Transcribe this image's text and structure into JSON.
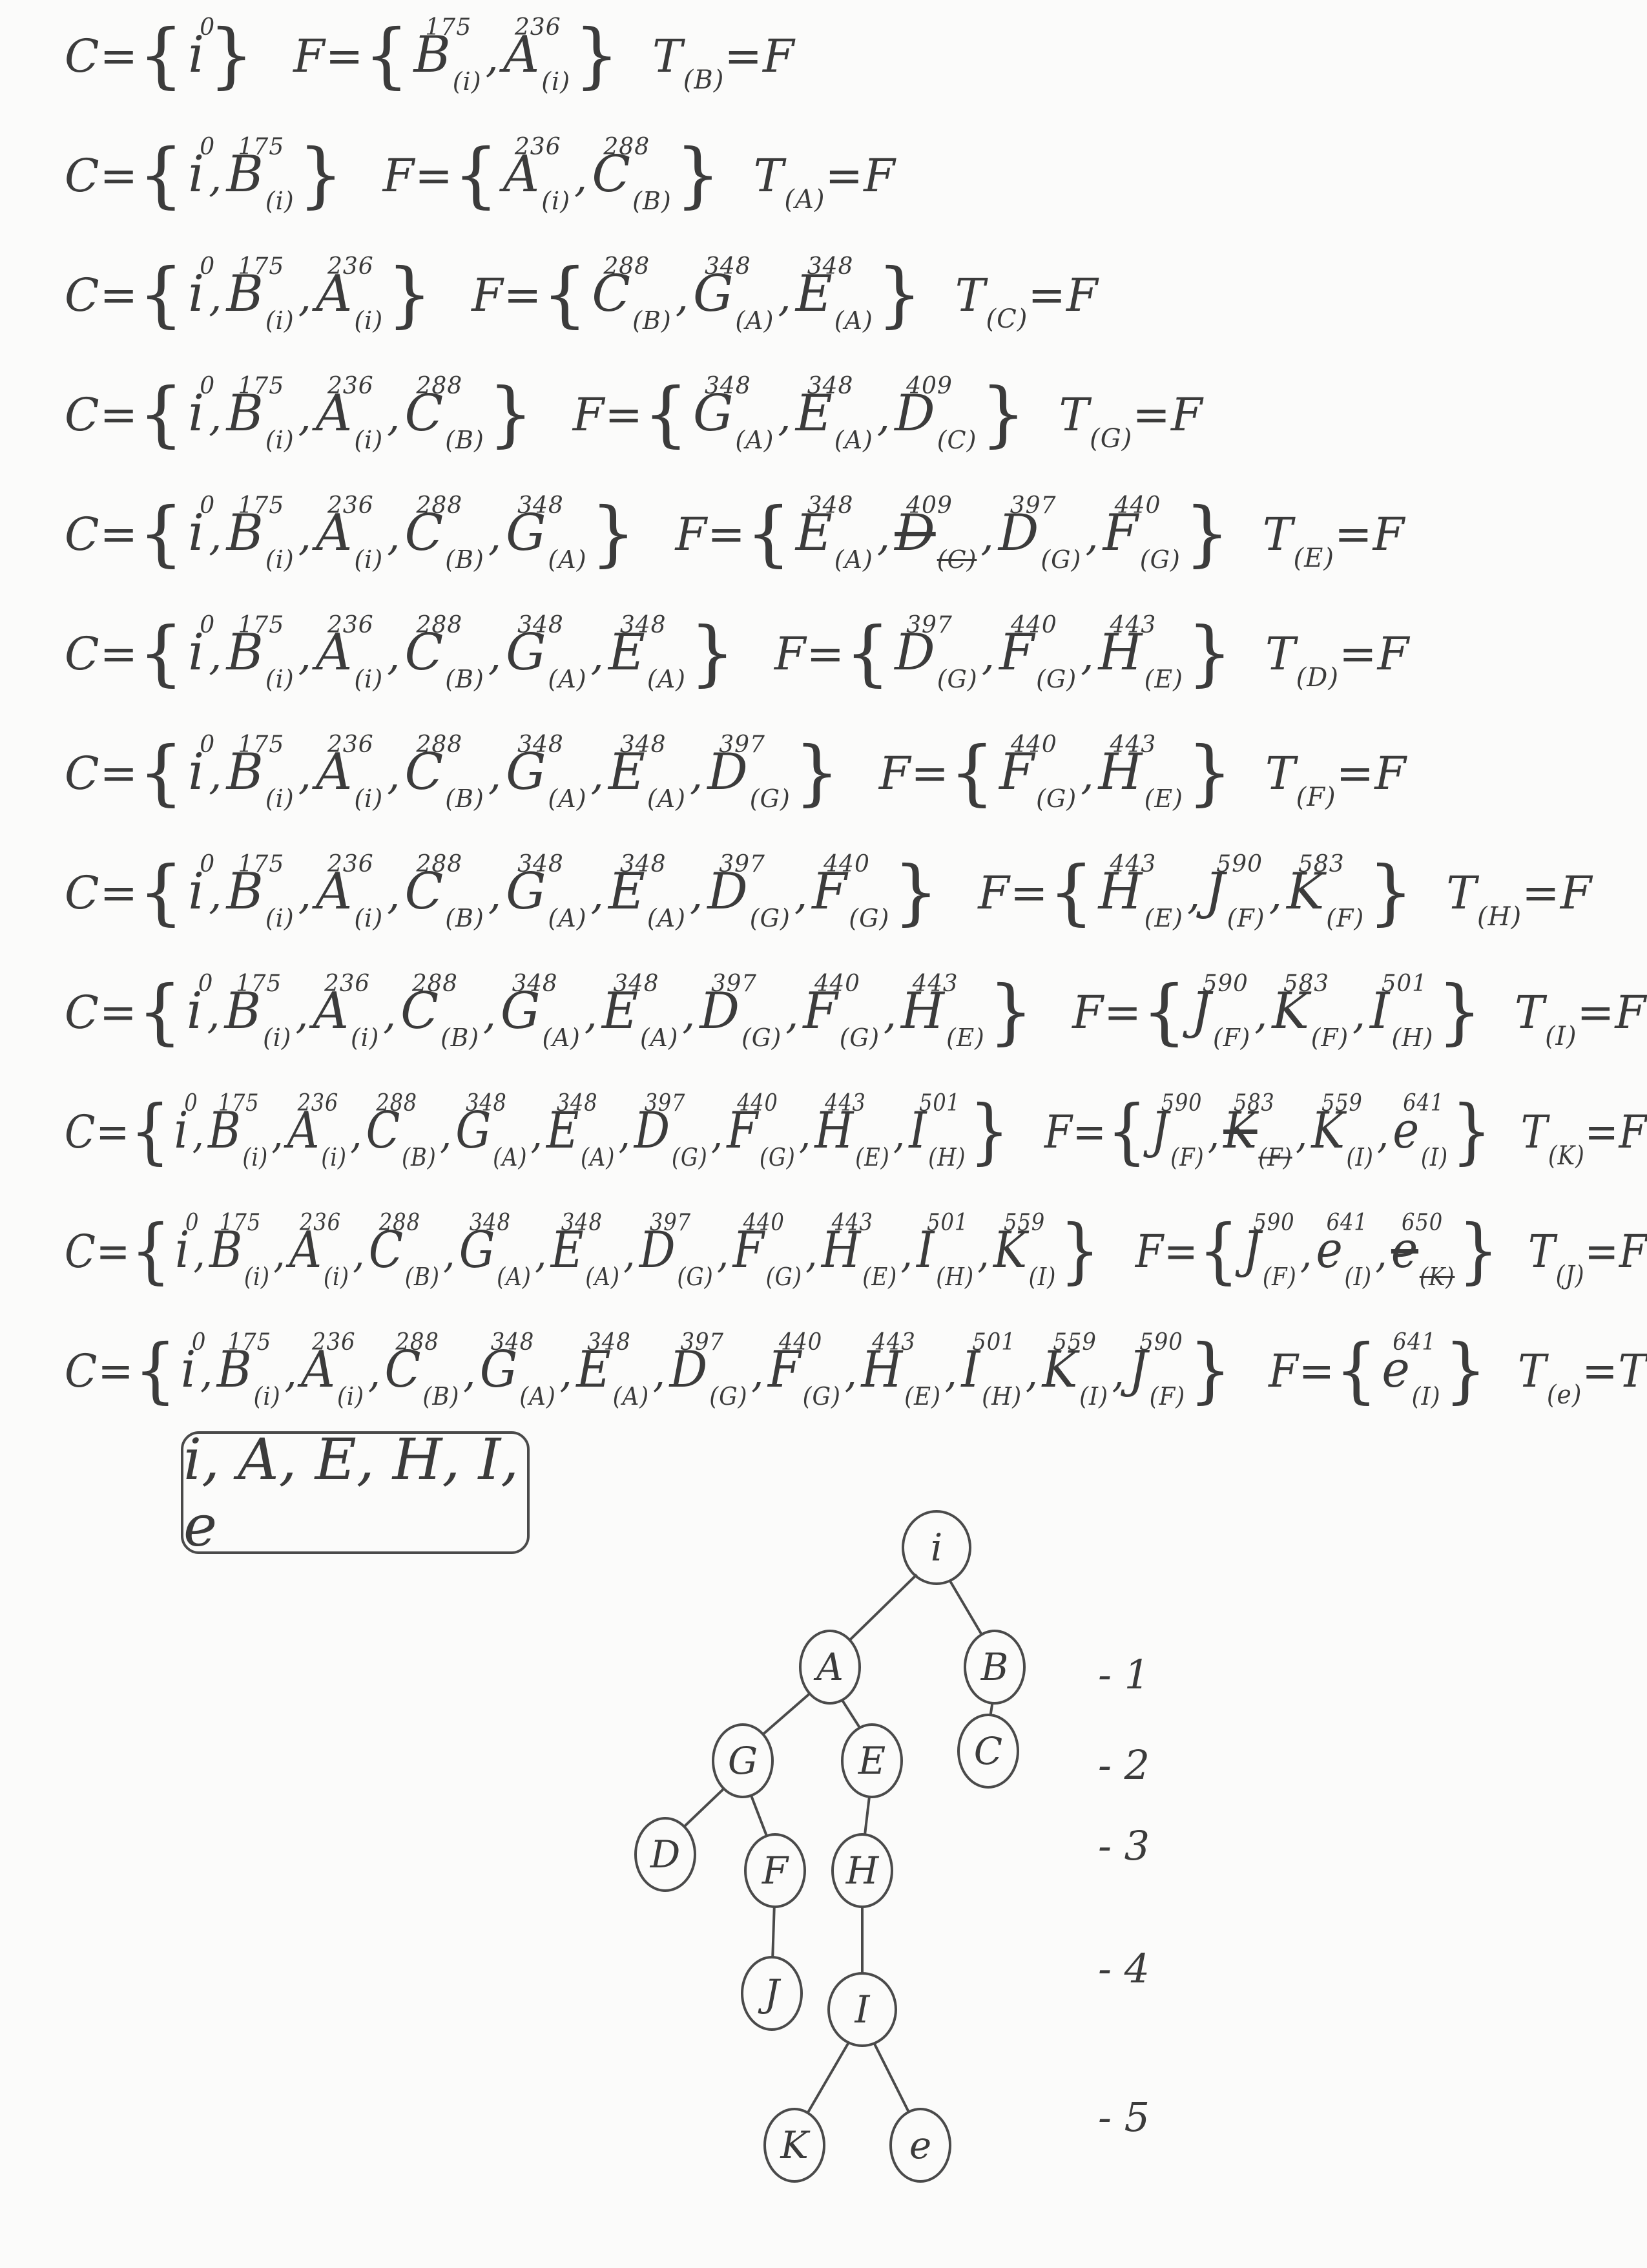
{
  "steps": [
    {
      "closed": [
        {
          "n": "i",
          "cost": "0",
          "par": ""
        }
      ],
      "open": [
        {
          "n": "B",
          "cost": "175",
          "par": "(i)"
        },
        {
          "n": "A",
          "cost": "236",
          "par": "(i)"
        }
      ],
      "test": {
        "node": "(B)",
        "result": "F"
      }
    },
    {
      "closed": [
        {
          "n": "i",
          "cost": "0",
          "par": ""
        },
        {
          "n": "B",
          "cost": "175",
          "par": "(i)"
        }
      ],
      "open": [
        {
          "n": "A",
          "cost": "236",
          "par": "(i)"
        },
        {
          "n": "C",
          "cost": "288",
          "par": "(B)"
        }
      ],
      "test": {
        "node": "(A)",
        "result": "F"
      }
    },
    {
      "closed": [
        {
          "n": "i",
          "cost": "0",
          "par": ""
        },
        {
          "n": "B",
          "cost": "175",
          "par": "(i)"
        },
        {
          "n": "A",
          "cost": "236",
          "par": "(i)"
        }
      ],
      "open": [
        {
          "n": "C",
          "cost": "288",
          "par": "(B)"
        },
        {
          "n": "G",
          "cost": "348",
          "par": "(A)"
        },
        {
          "n": "E",
          "cost": "348",
          "par": "(A)"
        }
      ],
      "test": {
        "node": "(C)",
        "result": "F"
      }
    },
    {
      "closed": [
        {
          "n": "i",
          "cost": "0",
          "par": ""
        },
        {
          "n": "B",
          "cost": "175",
          "par": "(i)"
        },
        {
          "n": "A",
          "cost": "236",
          "par": "(i)"
        },
        {
          "n": "C",
          "cost": "288",
          "par": "(B)"
        }
      ],
      "open": [
        {
          "n": "G",
          "cost": "348",
          "par": "(A)"
        },
        {
          "n": "E",
          "cost": "348",
          "par": "(A)"
        },
        {
          "n": "D",
          "cost": "409",
          "par": "(C)"
        }
      ],
      "test": {
        "node": "(G)",
        "result": "F"
      }
    },
    {
      "closed": [
        {
          "n": "i",
          "cost": "0",
          "par": ""
        },
        {
          "n": "B",
          "cost": "175",
          "par": "(i)"
        },
        {
          "n": "A",
          "cost": "236",
          "par": "(i)"
        },
        {
          "n": "C",
          "cost": "288",
          "par": "(B)"
        },
        {
          "n": "G",
          "cost": "348",
          "par": "(A)"
        }
      ],
      "open": [
        {
          "n": "E",
          "cost": "348",
          "par": "(A)"
        },
        {
          "n": "D",
          "cost": "409",
          "par": "(C)",
          "crossed": true
        },
        {
          "n": "D",
          "cost": "397",
          "par": "(G)"
        },
        {
          "n": "F",
          "cost": "440",
          "par": "(G)"
        }
      ],
      "test": {
        "node": "(E)",
        "result": "F"
      }
    },
    {
      "closed": [
        {
          "n": "i",
          "cost": "0",
          "par": ""
        },
        {
          "n": "B",
          "cost": "175",
          "par": "(i)"
        },
        {
          "n": "A",
          "cost": "236",
          "par": "(i)"
        },
        {
          "n": "C",
          "cost": "288",
          "par": "(B)"
        },
        {
          "n": "G",
          "cost": "348",
          "par": "(A)"
        },
        {
          "n": "E",
          "cost": "348",
          "par": "(A)"
        }
      ],
      "open": [
        {
          "n": "D",
          "cost": "397",
          "par": "(G)"
        },
        {
          "n": "F",
          "cost": "440",
          "par": "(G)"
        },
        {
          "n": "H",
          "cost": "443",
          "par": "(E)"
        }
      ],
      "test": {
        "node": "(D)",
        "result": "F"
      }
    },
    {
      "closed": [
        {
          "n": "i",
          "cost": "0",
          "par": ""
        },
        {
          "n": "B",
          "cost": "175",
          "par": "(i)"
        },
        {
          "n": "A",
          "cost": "236",
          "par": "(i)"
        },
        {
          "n": "C",
          "cost": "288",
          "par": "(B)"
        },
        {
          "n": "G",
          "cost": "348",
          "par": "(A)"
        },
        {
          "n": "E",
          "cost": "348",
          "par": "(A)"
        },
        {
          "n": "D",
          "cost": "397",
          "par": "(G)"
        }
      ],
      "open": [
        {
          "n": "F",
          "cost": "440",
          "par": "(G)"
        },
        {
          "n": "H",
          "cost": "443",
          "par": "(E)"
        }
      ],
      "test": {
        "node": "(F)",
        "result": "F"
      }
    },
    {
      "closed": [
        {
          "n": "i",
          "cost": "0",
          "par": ""
        },
        {
          "n": "B",
          "cost": "175",
          "par": "(i)"
        },
        {
          "n": "A",
          "cost": "236",
          "par": "(i)"
        },
        {
          "n": "C",
          "cost": "288",
          "par": "(B)"
        },
        {
          "n": "G",
          "cost": "348",
          "par": "(A)"
        },
        {
          "n": "E",
          "cost": "348",
          "par": "(A)"
        },
        {
          "n": "D",
          "cost": "397",
          "par": "(G)"
        },
        {
          "n": "F",
          "cost": "440",
          "par": "(G)"
        }
      ],
      "open": [
        {
          "n": "H",
          "cost": "443",
          "par": "(E)"
        },
        {
          "n": "J",
          "cost": "590",
          "par": "(F)"
        },
        {
          "n": "K",
          "cost": "583",
          "par": "(F)"
        }
      ],
      "test": {
        "node": "(H)",
        "result": "F"
      }
    },
    {
      "closed": [
        {
          "n": "i",
          "cost": "0",
          "par": ""
        },
        {
          "n": "B",
          "cost": "175",
          "par": "(i)"
        },
        {
          "n": "A",
          "cost": "236",
          "par": "(i)"
        },
        {
          "n": "C",
          "cost": "288",
          "par": "(B)"
        },
        {
          "n": "G",
          "cost": "348",
          "par": "(A)"
        },
        {
          "n": "E",
          "cost": "348",
          "par": "(A)"
        },
        {
          "n": "D",
          "cost": "397",
          "par": "(G)"
        },
        {
          "n": "F",
          "cost": "440",
          "par": "(G)"
        },
        {
          "n": "H",
          "cost": "443",
          "par": "(E)"
        }
      ],
      "open": [
        {
          "n": "J",
          "cost": "590",
          "par": "(F)"
        },
        {
          "n": "K",
          "cost": "583",
          "par": "(F)"
        },
        {
          "n": "I",
          "cost": "501",
          "par": "(H)"
        }
      ],
      "test": {
        "node": "(I)",
        "result": "F"
      }
    },
    {
      "closed": [
        {
          "n": "i",
          "cost": "0",
          "par": ""
        },
        {
          "n": "B",
          "cost": "175",
          "par": "(i)"
        },
        {
          "n": "A",
          "cost": "236",
          "par": "(i)"
        },
        {
          "n": "C",
          "cost": "288",
          "par": "(B)"
        },
        {
          "n": "G",
          "cost": "348",
          "par": "(A)"
        },
        {
          "n": "E",
          "cost": "348",
          "par": "(A)"
        },
        {
          "n": "D",
          "cost": "397",
          "par": "(G)"
        },
        {
          "n": "F",
          "cost": "440",
          "par": "(G)"
        },
        {
          "n": "H",
          "cost": "443",
          "par": "(E)"
        },
        {
          "n": "I",
          "cost": "501",
          "par": "(H)"
        }
      ],
      "open": [
        {
          "n": "J",
          "cost": "590",
          "par": "(F)"
        },
        {
          "n": "K",
          "cost": "583",
          "par": "(F)",
          "crossed": true
        },
        {
          "n": "K",
          "cost": "559",
          "par": "(I)"
        },
        {
          "n": "e",
          "cost": "641",
          "par": "(I)"
        }
      ],
      "test": {
        "node": "(K)",
        "result": "F"
      }
    },
    {
      "closed": [
        {
          "n": "i",
          "cost": "0",
          "par": ""
        },
        {
          "n": "B",
          "cost": "175",
          "par": "(i)"
        },
        {
          "n": "A",
          "cost": "236",
          "par": "(i)"
        },
        {
          "n": "C",
          "cost": "288",
          "par": "(B)"
        },
        {
          "n": "G",
          "cost": "348",
          "par": "(A)"
        },
        {
          "n": "E",
          "cost": "348",
          "par": "(A)"
        },
        {
          "n": "D",
          "cost": "397",
          "par": "(G)"
        },
        {
          "n": "F",
          "cost": "440",
          "par": "(G)"
        },
        {
          "n": "H",
          "cost": "443",
          "par": "(E)"
        },
        {
          "n": "I",
          "cost": "501",
          "par": "(H)"
        },
        {
          "n": "K",
          "cost": "559",
          "par": "(I)"
        }
      ],
      "open": [
        {
          "n": "J",
          "cost": "590",
          "par": "(F)"
        },
        {
          "n": "e",
          "cost": "641",
          "par": "(I)"
        },
        {
          "n": "e",
          "cost": "650",
          "par": "(K)",
          "crossed": true
        }
      ],
      "test": {
        "node": "(J)",
        "result": "F"
      }
    },
    {
      "closed": [
        {
          "n": "i",
          "cost": "0",
          "par": ""
        },
        {
          "n": "B",
          "cost": "175",
          "par": "(i)"
        },
        {
          "n": "A",
          "cost": "236",
          "par": "(i)"
        },
        {
          "n": "C",
          "cost": "288",
          "par": "(B)"
        },
        {
          "n": "G",
          "cost": "348",
          "par": "(A)"
        },
        {
          "n": "E",
          "cost": "348",
          "par": "(A)"
        },
        {
          "n": "D",
          "cost": "397",
          "par": "(G)"
        },
        {
          "n": "F",
          "cost": "440",
          "par": "(G)"
        },
        {
          "n": "H",
          "cost": "443",
          "par": "(E)"
        },
        {
          "n": "I",
          "cost": "501",
          "par": "(H)"
        },
        {
          "n": "K",
          "cost": "559",
          "par": "(I)"
        },
        {
          "n": "J",
          "cost": "590",
          "par": "(F)"
        }
      ],
      "open": [
        {
          "n": "e",
          "cost": "641",
          "par": "(I)"
        }
      ],
      "test": {
        "node": "(e)",
        "result": "T"
      }
    }
  ],
  "answer": "i, A, E, H, I, e",
  "tree": {
    "nodes": [
      {
        "id": "i",
        "label": "i"
      },
      {
        "id": "A",
        "label": "A"
      },
      {
        "id": "B",
        "label": "B"
      },
      {
        "id": "G",
        "label": "G"
      },
      {
        "id": "E",
        "label": "E"
      },
      {
        "id": "C",
        "label": "C"
      },
      {
        "id": "D",
        "label": "D"
      },
      {
        "id": "F",
        "label": "F"
      },
      {
        "id": "H",
        "label": "H"
      },
      {
        "id": "J",
        "label": "J"
      },
      {
        "id": "I",
        "label": "I"
      },
      {
        "id": "K",
        "label": "K"
      },
      {
        "id": "e",
        "label": "e"
      }
    ],
    "edges": [
      [
        "i",
        "A"
      ],
      [
        "i",
        "B"
      ],
      [
        "A",
        "G"
      ],
      [
        "A",
        "E"
      ],
      [
        "B",
        "C"
      ],
      [
        "G",
        "D"
      ],
      [
        "G",
        "F"
      ],
      [
        "E",
        "H"
      ],
      [
        "F",
        "J"
      ],
      [
        "H",
        "I"
      ],
      [
        "I",
        "K"
      ],
      [
        "I",
        "e"
      ]
    ]
  },
  "levels": [
    "- 1",
    "- 2",
    "- 3",
    "- 4",
    "- 5"
  ]
}
